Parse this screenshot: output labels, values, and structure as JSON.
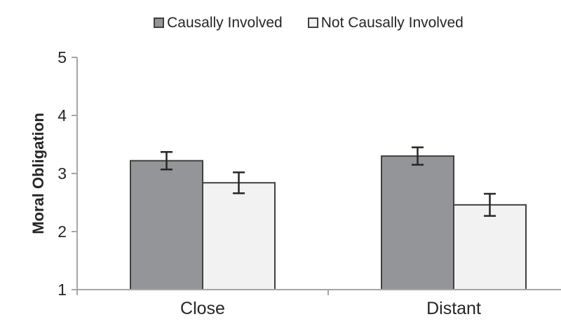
{
  "chart_data": {
    "type": "bar",
    "title": "",
    "categories": [
      "Close",
      "Distant"
    ],
    "series": [
      {
        "name": "Causally Involved",
        "values": [
          3.22,
          3.3
        ],
        "errors": [
          0.15,
          0.15
        ],
        "fill": "#949598",
        "border": "#404040"
      },
      {
        "name": "Not Causally Involved",
        "values": [
          2.84,
          2.46
        ],
        "errors": [
          0.18,
          0.19
        ],
        "fill": "#f2f2f2",
        "border": "#404040"
      }
    ],
    "xlabel": "",
    "ylabel": "Moral Obligation",
    "ylim": [
      1,
      5
    ],
    "yticks": [
      1,
      2,
      3,
      4,
      5
    ],
    "grid": false,
    "legend_position": "top",
    "error_bars": true,
    "colors": {
      "axis": "#a6a6a6",
      "error_bar": "#262626",
      "text": "#262626",
      "background": "#ffffff"
    }
  }
}
